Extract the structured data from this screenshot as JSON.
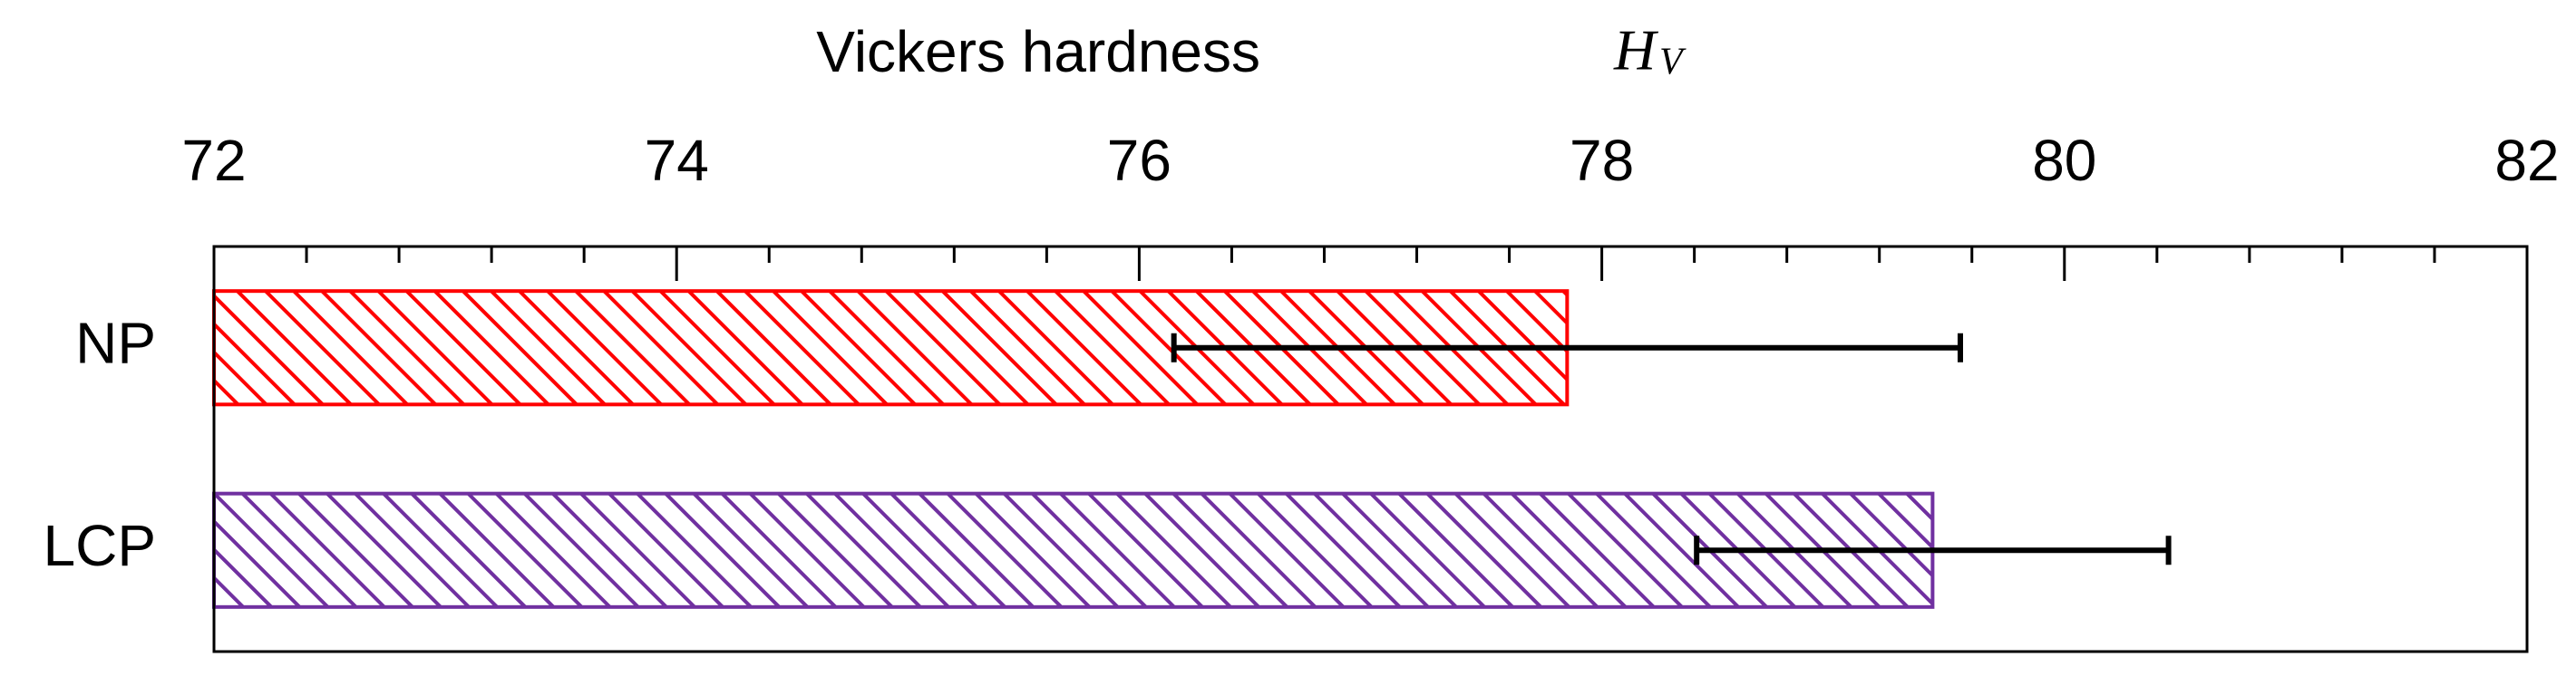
{
  "chart_data": {
    "type": "hbar",
    "xlabel": "Vickers hardness",
    "xlabel_symbol": "H",
    "xlabel_subscript": "V",
    "categories": [
      "NP",
      "LCP"
    ],
    "series": [
      {
        "name": "Vickers hardness",
        "values": [
          77.85,
          79.43
        ],
        "errors": [
          1.7,
          1.02
        ],
        "colors": [
          "#ff0000",
          "#7030a0"
        ]
      }
    ],
    "xlim": [
      72,
      82
    ],
    "xticks": [
      72,
      74,
      76,
      78,
      80,
      82
    ],
    "xminorticks": [
      72.4,
      72.8,
      73.2,
      73.6,
      74.4,
      74.8,
      75.2,
      75.6,
      76.4,
      76.8,
      77.2,
      77.6,
      78.4,
      78.8,
      79.2,
      79.6,
      80.4,
      80.8,
      81.2,
      81.6
    ],
    "error_color": "#000000",
    "hatch": true
  }
}
